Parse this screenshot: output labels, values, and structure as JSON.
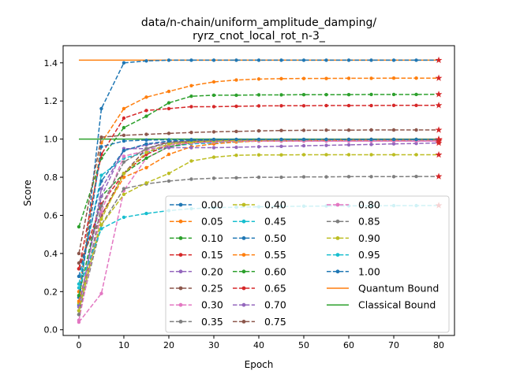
{
  "chart_data": {
    "type": "line",
    "title": "data/n-chain/uniform_amplitude_damping/\nryrz_cnot_local_rot_n-3_",
    "title_lines": [
      "data/n-chain/uniform_amplitude_damping/",
      "ryrz_cnot_local_rot_n-3_"
    ],
    "xlabel": "Epoch",
    "ylabel": "Score",
    "xlim": [
      -3.5,
      83.5
    ],
    "ylim": [
      -0.03,
      1.49
    ],
    "xticks": [
      0,
      10,
      20,
      30,
      40,
      50,
      60,
      70,
      80
    ],
    "yticks": [
      0.0,
      0.2,
      0.4,
      0.6,
      0.8,
      1.0,
      1.2,
      1.4
    ],
    "ytick_labels": [
      "0.0",
      "0.2",
      "0.4",
      "0.6",
      "0.8",
      "1.0",
      "1.2",
      "1.4"
    ],
    "grid": false,
    "legend_position": "lower-right",
    "legend_columns": 3,
    "x": [
      0,
      5,
      10,
      15,
      20,
      25,
      30,
      35,
      40,
      45,
      50,
      55,
      60,
      65,
      70,
      75,
      80
    ],
    "final_marker": "red-star",
    "series": [
      {
        "name": "0.00",
        "color": "#1f77b4",
        "values": [
          0.13,
          1.16,
          1.4,
          1.41,
          1.414,
          1.414,
          1.414,
          1.414,
          1.414,
          1.414,
          1.414,
          1.414,
          1.414,
          1.414,
          1.414,
          1.414,
          1.414
        ]
      },
      {
        "name": "0.05",
        "color": "#ff7f0e",
        "values": [
          0.2,
          0.98,
          1.16,
          1.22,
          1.25,
          1.28,
          1.3,
          1.31,
          1.315,
          1.317,
          1.318,
          1.318,
          1.319,
          1.319,
          1.32,
          1.32,
          1.32
        ]
      },
      {
        "name": "0.10",
        "color": "#2ca02c",
        "values": [
          0.54,
          0.9,
          1.06,
          1.12,
          1.19,
          1.225,
          1.23,
          1.23,
          1.232,
          1.232,
          1.233,
          1.233,
          1.233,
          1.234,
          1.234,
          1.234,
          1.235
        ]
      },
      {
        "name": "0.15",
        "color": "#d62728",
        "values": [
          0.32,
          0.92,
          1.11,
          1.15,
          1.16,
          1.17,
          1.17,
          1.172,
          1.174,
          1.175,
          1.175,
          1.176,
          1.176,
          1.176,
          1.177,
          1.177,
          1.177
        ]
      },
      {
        "name": "0.20",
        "color": "#9467bd",
        "values": [
          0.1,
          0.74,
          0.94,
          0.97,
          0.985,
          0.99,
          0.99,
          0.99,
          0.99,
          0.99,
          0.99,
          0.99,
          0.99,
          0.99,
          0.99,
          0.99,
          0.99
        ]
      },
      {
        "name": "0.25",
        "color": "#8c564b",
        "values": [
          0.4,
          1.01,
          1.02,
          1.025,
          1.03,
          1.035,
          1.038,
          1.04,
          1.043,
          1.045,
          1.046,
          1.047,
          1.047,
          1.048,
          1.048,
          1.048,
          1.048
        ]
      },
      {
        "name": "0.30",
        "color": "#e377c2",
        "values": [
          0.04,
          0.19,
          0.73,
          0.9,
          0.96,
          0.98,
          0.985,
          0.99,
          0.99,
          0.99,
          0.99,
          0.99,
          0.99,
          0.99,
          0.99,
          0.99,
          0.99
        ]
      },
      {
        "name": "0.35",
        "color": "#7f7f7f",
        "values": [
          0.08,
          0.55,
          0.74,
          0.765,
          0.78,
          0.79,
          0.795,
          0.797,
          0.8,
          0.8,
          0.802,
          0.802,
          0.803,
          0.803,
          0.803,
          0.804,
          0.804
        ]
      },
      {
        "name": "0.40",
        "color": "#bcbd22",
        "values": [
          0.14,
          0.55,
          0.71,
          0.77,
          0.82,
          0.885,
          0.905,
          0.915,
          0.917,
          0.917,
          0.918,
          0.918,
          0.918,
          0.918,
          0.918,
          0.918,
          0.918
        ]
      },
      {
        "name": "0.45",
        "color": "#17becf",
        "values": [
          0.24,
          0.81,
          0.9,
          0.93,
          0.96,
          0.975,
          0.98,
          0.985,
          0.99,
          0.99,
          0.992,
          0.993,
          0.994,
          0.995,
          0.996,
          0.996,
          0.997
        ]
      },
      {
        "name": "0.50",
        "color": "#1f77b4",
        "values": [
          0.17,
          0.96,
          0.99,
          0.995,
          0.996,
          0.997,
          0.998,
          0.998,
          0.998,
          0.998,
          0.998,
          0.998,
          0.998,
          0.998,
          0.998,
          0.998,
          0.998
        ]
      },
      {
        "name": "0.55",
        "color": "#ff7f0e",
        "values": [
          0.15,
          0.6,
          0.8,
          0.85,
          0.92,
          0.96,
          0.975,
          0.985,
          0.99,
          0.99,
          0.992,
          0.993,
          0.994,
          0.995,
          0.995,
          0.996,
          0.996
        ]
      },
      {
        "name": "0.60",
        "color": "#2ca02c",
        "values": [
          0.18,
          0.7,
          0.82,
          0.9,
          0.96,
          0.98,
          0.99,
          0.995,
          0.998,
          0.998,
          0.998,
          0.998,
          0.998,
          0.998,
          0.998,
          0.998,
          0.998
        ]
      },
      {
        "name": "0.65",
        "color": "#d62728",
        "values": [
          0.32,
          0.66,
          0.82,
          0.92,
          0.97,
          0.985,
          0.99,
          0.993,
          0.995,
          0.996,
          0.997,
          0.997,
          0.998,
          0.998,
          0.998,
          0.998,
          0.998
        ]
      },
      {
        "name": "0.70",
        "color": "#9467bd",
        "values": [
          0.12,
          0.7,
          0.95,
          0.95,
          0.955,
          0.955,
          0.955,
          0.957,
          0.96,
          0.962,
          0.965,
          0.967,
          0.97,
          0.972,
          0.975,
          0.977,
          0.98
        ]
      },
      {
        "name": "0.75",
        "color": "#8c564b",
        "values": [
          0.35,
          0.6,
          0.82,
          0.95,
          0.985,
          0.99,
          0.992,
          0.995,
          0.996,
          0.997,
          0.997,
          0.998,
          0.998,
          0.998,
          0.998,
          0.998,
          0.998
        ]
      },
      {
        "name": "0.80",
        "color": "#e377c2",
        "values": [
          0.05,
          0.62,
          0.91,
          0.94,
          0.97,
          0.98,
          0.985,
          0.99,
          0.99,
          0.99,
          0.99,
          0.99,
          0.99,
          0.99,
          0.99,
          0.99,
          0.99
        ]
      },
      {
        "name": "0.85",
        "color": "#7f7f7f",
        "values": [
          0.08,
          0.65,
          0.88,
          0.95,
          0.98,
          0.99,
          0.993,
          0.995,
          0.996,
          0.997,
          0.997,
          0.998,
          0.998,
          0.998,
          0.998,
          0.998,
          0.998
        ]
      },
      {
        "name": "0.90",
        "color": "#bcbd22",
        "values": [
          0.1,
          0.58,
          0.82,
          0.93,
          0.975,
          0.985,
          0.99,
          0.993,
          0.995,
          0.996,
          0.997,
          0.997,
          0.998,
          0.998,
          0.998,
          0.998,
          0.998
        ]
      },
      {
        "name": "0.95",
        "color": "#17becf",
        "values": [
          0.22,
          0.53,
          0.59,
          0.61,
          0.625,
          0.635,
          0.64,
          0.643,
          0.645,
          0.647,
          0.648,
          0.649,
          0.65,
          0.65,
          0.651,
          0.651,
          0.652
        ]
      },
      {
        "name": "1.00",
        "color": "#1f77b4",
        "values": [
          0.28,
          0.78,
          0.94,
          0.975,
          0.99,
          0.995,
          0.997,
          0.998,
          0.998,
          0.998,
          0.998,
          0.998,
          0.998,
          0.998,
          0.998,
          0.998,
          0.998
        ]
      }
    ],
    "bounds": [
      {
        "name": "Quantum Bound",
        "color": "#ff7f0e",
        "value": 1.414
      },
      {
        "name": "Classical Bound",
        "color": "#2ca02c",
        "value": 1.0
      }
    ]
  }
}
